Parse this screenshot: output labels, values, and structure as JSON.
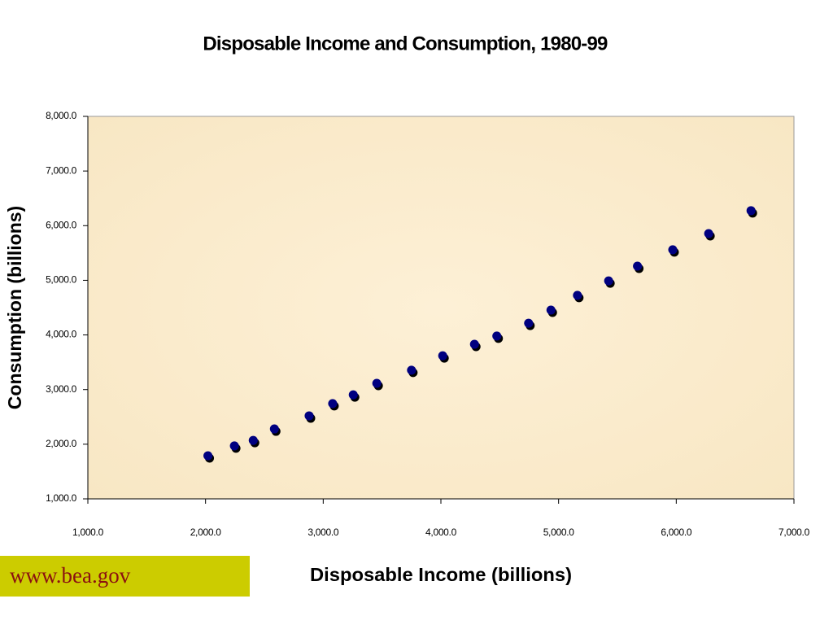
{
  "chart_data": {
    "type": "scatter",
    "title": "Disposable Income and Consumption, 1980-99",
    "x_label": "Disposable Income (billions)",
    "y_label": "Consumption (billions)",
    "source": "www.bea.gov",
    "x": [
      2020,
      2245,
      2405,
      2585,
      2880,
      3080,
      3255,
      3455,
      3750,
      4015,
      4285,
      4475,
      4745,
      4935,
      5160,
      5425,
      5670,
      5970,
      6275,
      6635
    ],
    "series": [
      {
        "name": "Consumption",
        "color": "#000080",
        "values": [
          1790,
          1970,
          2070,
          2280,
          2520,
          2745,
          2905,
          3115,
          3355,
          3620,
          3830,
          3980,
          4215,
          4455,
          4725,
          4990,
          5260,
          5560,
          5855,
          6275
        ]
      }
    ],
    "xlim": [
      1000,
      7000
    ],
    "xticks": [
      {
        "value": 1000,
        "label": "1,000.0"
      },
      {
        "value": 2000,
        "label": "2,000.0"
      },
      {
        "value": 3000,
        "label": "3,000.0"
      },
      {
        "value": 4000,
        "label": "4,000.0"
      },
      {
        "value": 5000,
        "label": "5,000.0"
      },
      {
        "value": 6000,
        "label": "6,000.0"
      },
      {
        "value": 7000,
        "label": "7,000.0"
      }
    ],
    "ylim": [
      1000,
      8000
    ],
    "yticks": [
      {
        "value": 1000,
        "label": "1,000.0"
      },
      {
        "value": 2000,
        "label": "2,000.0"
      },
      {
        "value": 3000,
        "label": "3,000.0"
      },
      {
        "value": 4000,
        "label": "4,000.0"
      },
      {
        "value": 5000,
        "label": "5,000.0"
      },
      {
        "value": 6000,
        "label": "6,000.0"
      },
      {
        "value": 7000,
        "label": "7,000.0"
      },
      {
        "value": 8000,
        "label": "8,000.0"
      }
    ],
    "grid": false
  }
}
